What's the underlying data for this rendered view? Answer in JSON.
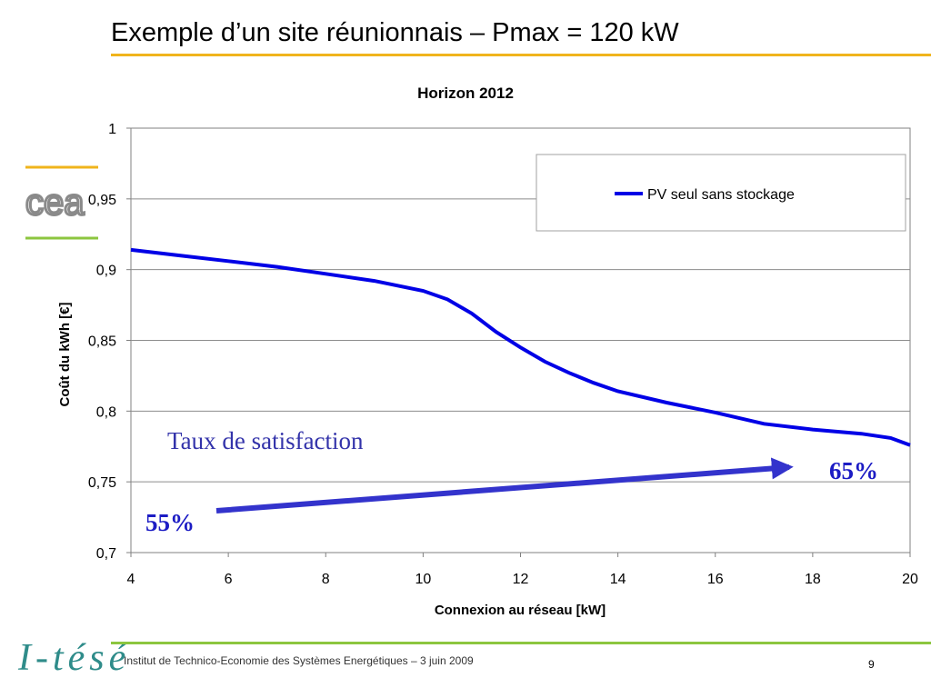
{
  "slide": {
    "title": "Exemple d’un site réunionnais – Pmax = 120 kW",
    "footer": "Institut de Technico-Economie des Systèmes Energétiques  –  3 juin 2009",
    "page_number": "9",
    "brand": "I-tésé",
    "logo_text": "cea",
    "colors": {
      "title_rule": "#f0b41c",
      "footer_rule": "#8cc63f",
      "series": "#0000e6",
      "arrow": "#3333cc",
      "brand": "#2f8c8a"
    }
  },
  "chart_data": {
    "type": "line",
    "title": "Horizon 2012",
    "xlabel": "Connexion au réseau [kW]",
    "ylabel": "Coût du kWh [€]",
    "xlim": [
      4,
      20
    ],
    "ylim": [
      0.7,
      1
    ],
    "xticks": [
      "4",
      "6",
      "8",
      "10",
      "12",
      "14",
      "16",
      "18",
      "20"
    ],
    "yticks": [
      "0,7",
      "0,75",
      "0,8",
      "0,85",
      "0,9",
      "0,95",
      "1"
    ],
    "grid": true,
    "legend_position": "top-right",
    "series": [
      {
        "name": "PV seul sans stockage",
        "x": [
          4,
          5,
          6,
          7,
          8,
          9,
          10,
          10.5,
          11,
          11.5,
          12,
          12.5,
          13,
          13.5,
          14,
          15,
          16,
          17,
          18,
          19,
          19.6,
          20
        ],
        "y": [
          0.914,
          0.91,
          0.906,
          0.902,
          0.897,
          0.892,
          0.885,
          0.879,
          0.869,
          0.856,
          0.845,
          0.835,
          0.827,
          0.82,
          0.814,
          0.806,
          0.799,
          0.791,
          0.787,
          0.784,
          0.781,
          0.776
        ]
      }
    ],
    "annotations": {
      "satisfaction_label": "Taux de satisfaction",
      "start_label": "55%",
      "end_label": "65%"
    }
  }
}
